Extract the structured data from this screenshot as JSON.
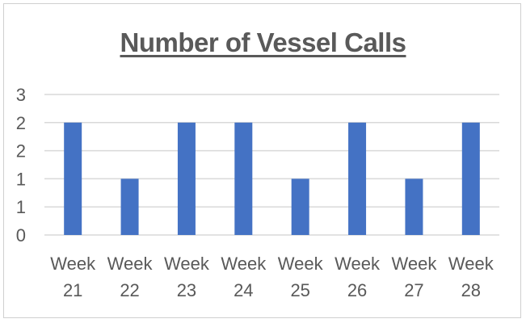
{
  "chart_data": {
    "type": "bar",
    "title": "Number of Vessel Calls",
    "xlabel": "",
    "ylabel": "",
    "categories": [
      [
        "Week",
        "21"
      ],
      [
        "Week",
        "22"
      ],
      [
        "Week",
        "23"
      ],
      [
        "Week",
        "24"
      ],
      [
        "Week",
        "25"
      ],
      [
        "Week",
        "26"
      ],
      [
        "Week",
        "27"
      ],
      [
        "Week",
        "28"
      ]
    ],
    "values": [
      2,
      1,
      2,
      2,
      1,
      2,
      1,
      2
    ],
    "ylim": [
      0,
      2.5
    ],
    "yticks": [
      0,
      0.5,
      1,
      1.5,
      2,
      2.5
    ],
    "ytick_labels": [
      "0",
      "1",
      "1",
      "2",
      "2",
      "3"
    ],
    "grid": true,
    "legend": "none",
    "colors": {
      "bar": "#4472C4",
      "grid": "#d9d9d9",
      "text": "#595959"
    }
  }
}
